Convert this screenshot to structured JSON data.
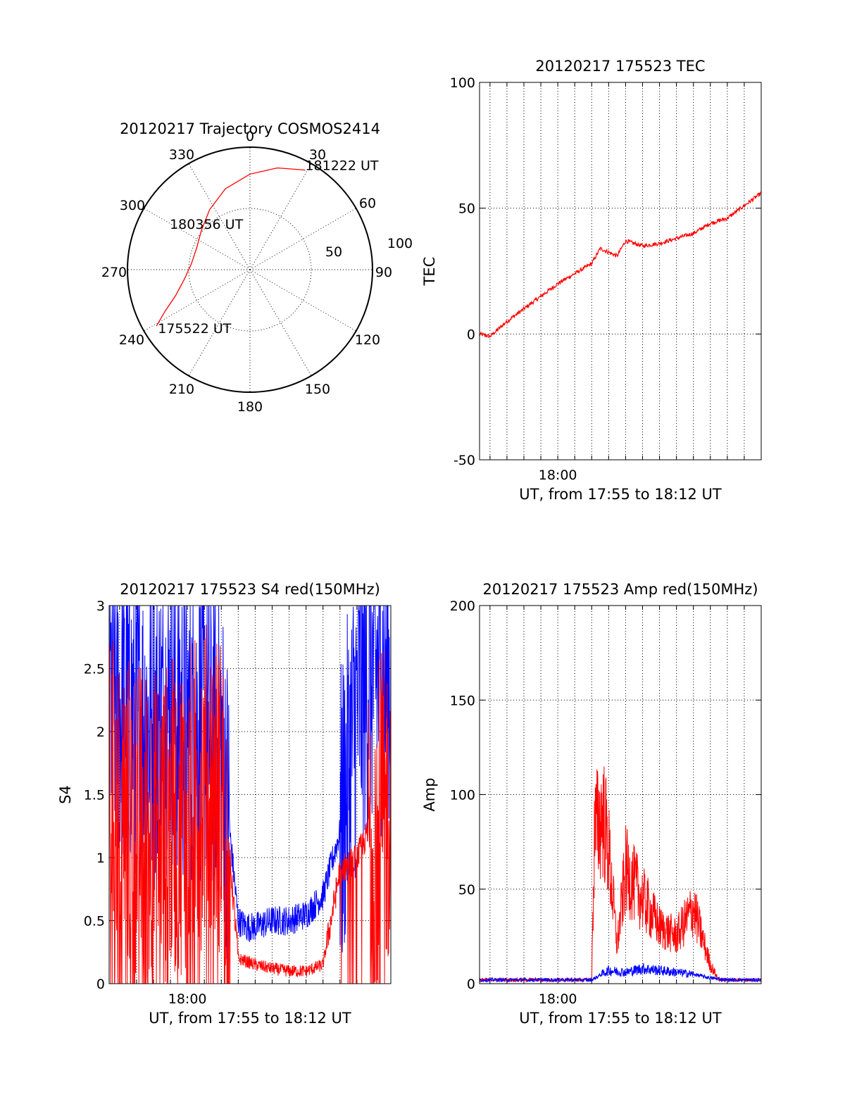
{
  "colors": {
    "red": "#ff0000",
    "blue": "#0000ff"
  },
  "chart_data": [
    {
      "type": "polar",
      "title": "20120217 Trajectory COSMOS2414",
      "angle_labels": [
        "0",
        "30",
        "60",
        "90",
        "120",
        "150",
        "180",
        "210",
        "240",
        "270",
        "300",
        "330"
      ],
      "radius_labels": [
        "50",
        "100"
      ],
      "rlim": [
        0,
        100
      ],
      "grid": true,
      "series": [
        {
          "color": "red",
          "azimuth": [
            239,
            244,
            251,
            262,
            276,
            292,
            309,
            326,
            343,
            0,
            15,
            29
          ],
          "radius": [
            89,
            77,
            64,
            54,
            48,
            47,
            51,
            59,
            69,
            78,
            86,
            93
          ]
        }
      ],
      "annotations": [
        {
          "text": "181222 UT",
          "azimuth": 29,
          "radius": 93
        },
        {
          "text": "180356 UT",
          "azimuth": 290,
          "radius": 47
        },
        {
          "text": "175522 UT",
          "azimuth": 239,
          "radius": 89
        }
      ]
    },
    {
      "type": "line",
      "title": "20120217 175523 TEC",
      "ylabel": "TEC",
      "xlabel": "UT, from 17:55 to 18:12 UT",
      "xlim": [
        "17:55",
        "18:12"
      ],
      "ylim": [
        -50,
        100
      ],
      "yticks": [
        "-50",
        "0",
        "50",
        "100"
      ],
      "xticks": [
        "18:00"
      ],
      "grid": true,
      "series": [
        {
          "color": "red",
          "x": [
            "17:55:23",
            "17:56:00",
            "17:57:00",
            "17:58:00",
            "17:59:00",
            "18:00:00",
            "18:01:00",
            "18:02:00",
            "18:02:30",
            "18:03:30",
            "18:04:00",
            "18:05:00",
            "18:06:00",
            "18:07:00",
            "18:08:00",
            "18:09:00",
            "18:10:00",
            "18:11:00",
            "18:12:00"
          ],
          "y": [
            0,
            -1,
            5,
            10,
            15,
            20,
            24,
            28,
            34,
            31,
            37,
            35,
            36,
            38,
            40,
            44,
            46,
            51,
            56
          ]
        }
      ]
    },
    {
      "type": "line",
      "title": "20120217 175523 S4 red(150MHz)",
      "ylabel": "S4",
      "xlabel": "UT, from 17:55 to 18:12 UT",
      "xlim": [
        "17:55",
        "18:12"
      ],
      "ylim": [
        0,
        3
      ],
      "yticks": [
        "0",
        "0.5",
        "1",
        "1.5",
        "2",
        "2.5",
        "3"
      ],
      "xticks": [
        "18:00"
      ],
      "grid": true,
      "series": [
        {
          "color": "blue",
          "x": [
            "17:55:23",
            "17:56:00",
            "17:57:00",
            "17:58:00",
            "17:59:00",
            "18:00:00",
            "18:01:00",
            "18:02:00",
            "18:03:00",
            "18:03:30",
            "18:04:00",
            "18:05:00",
            "18:06:00",
            "18:07:00",
            "18:08:00",
            "18:09:00",
            "18:10:00",
            "18:11:00",
            "18:12:00"
          ],
          "y": [
            2.3,
            2.2,
            2.1,
            2.0,
            2.2,
            2.0,
            2.1,
            1.9,
            0.5,
            0.45,
            0.45,
            0.5,
            0.5,
            0.55,
            0.7,
            1.2,
            2.2,
            2.5,
            2.4
          ]
        },
        {
          "color": "red",
          "x": [
            "17:55:23",
            "17:56:00",
            "17:57:00",
            "17:58:00",
            "17:59:00",
            "18:00:00",
            "18:01:00",
            "18:02:00",
            "18:02:30",
            "18:03:00",
            "18:04:00",
            "18:05:00",
            "18:06:00",
            "18:07:00",
            "18:08:00",
            "18:09:00",
            "18:10:00",
            "18:11:00",
            "18:12:00"
          ],
          "y": [
            1.5,
            1.4,
            1.3,
            1.2,
            1.3,
            1.4,
            1.6,
            1.5,
            1.0,
            0.2,
            0.15,
            0.12,
            0.1,
            0.1,
            0.15,
            0.9,
            1.0,
            1.3,
            1.4
          ]
        }
      ]
    },
    {
      "type": "line",
      "title": "20120217 175523 Amp red(150MHz)",
      "ylabel": "Amp",
      "xlabel": "UT, from 17:55 to 18:12 UT",
      "xlim": [
        "17:55",
        "18:12"
      ],
      "ylim": [
        0,
        200
      ],
      "yticks": [
        "0",
        "50",
        "100",
        "150",
        "200"
      ],
      "xticks": [
        "18:00"
      ],
      "grid": true,
      "series": [
        {
          "color": "red",
          "x": [
            "17:55:23",
            "17:59:00",
            "18:02:00",
            "18:02:10",
            "18:02:40",
            "18:03:00",
            "18:03:30",
            "18:04:00",
            "18:05:00",
            "18:06:00",
            "18:07:00",
            "18:08:00",
            "18:08:30",
            "18:09:00",
            "18:09:30",
            "18:10:00",
            "18:12:00"
          ],
          "y": [
            2,
            2,
            2,
            80,
            90,
            70,
            20,
            60,
            45,
            30,
            25,
            40,
            25,
            10,
            2,
            2,
            2
          ]
        },
        {
          "color": "blue",
          "x": [
            "17:55:23",
            "17:59:00",
            "18:02:00",
            "18:03:00",
            "18:04:00",
            "18:05:00",
            "18:06:00",
            "18:07:00",
            "18:08:00",
            "18:09:00",
            "18:10:00",
            "18:12:00"
          ],
          "y": [
            2,
            2,
            2,
            7,
            6,
            8,
            7,
            6,
            5,
            3,
            2,
            2
          ]
        }
      ]
    }
  ]
}
